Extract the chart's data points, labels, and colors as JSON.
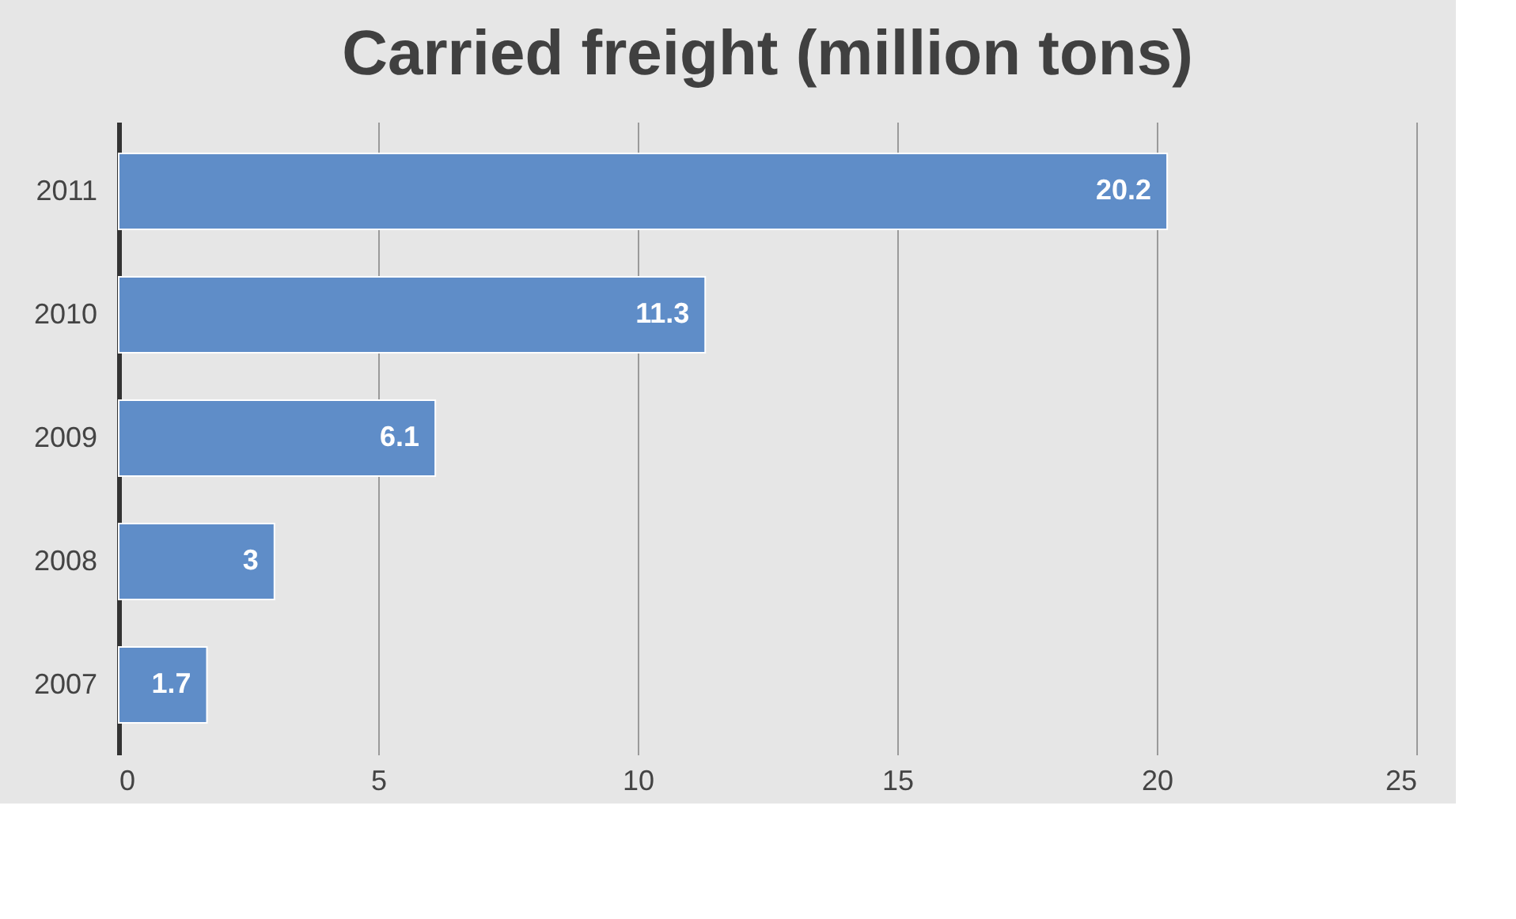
{
  "chart_data": {
    "type": "bar",
    "orientation": "horizontal",
    "title": "Carried freight (million tons)",
    "categories": [
      "2011",
      "2010",
      "2009",
      "2008",
      "2007"
    ],
    "values": [
      20.2,
      11.3,
      6.1,
      3,
      1.7
    ],
    "color": "#5f8dc8",
    "xlim": [
      0,
      25
    ],
    "xticks": [
      0,
      5,
      10,
      15,
      20,
      25
    ],
    "grid": "x",
    "data_labels": true
  }
}
